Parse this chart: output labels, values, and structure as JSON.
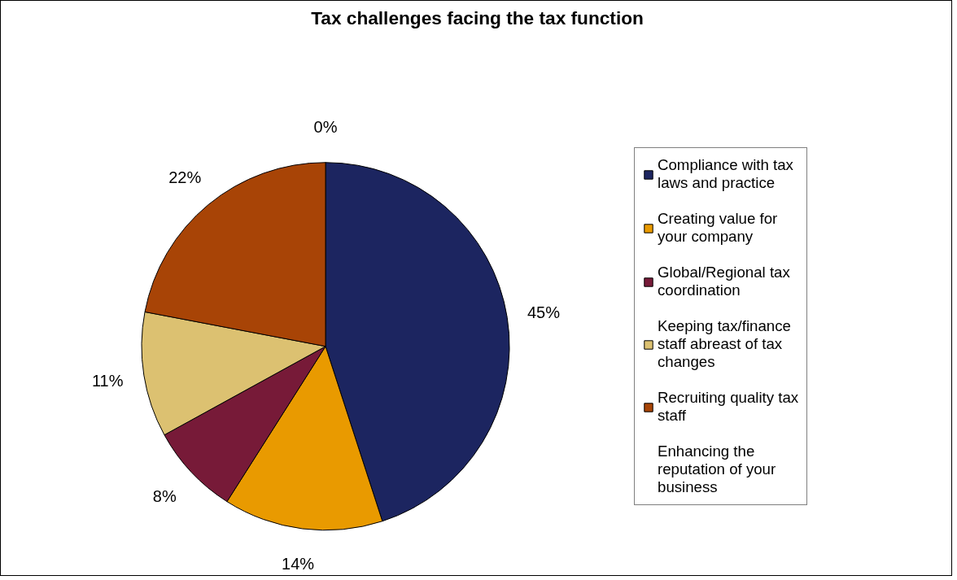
{
  "chart_data": {
    "type": "pie",
    "title": "Tax challenges facing the tax function",
    "categories": [
      "Compliance with tax laws and practice",
      "Creating value for your company",
      "Global/Regional tax coordination",
      "Keeping tax/finance staff abreast of tax changes",
      "Recruiting quality tax staff",
      "Enhancing the reputation of your business"
    ],
    "values": [
      45,
      14,
      8,
      11,
      22,
      0
    ],
    "colors": [
      "#1c2560",
      "#e99a00",
      "#771a38",
      "#dcc171",
      "#a84406",
      "#5a2e0c"
    ],
    "value_labels": [
      "45%",
      "14%",
      "8%",
      "11%",
      "22%",
      "0%"
    ],
    "legend": "right"
  }
}
